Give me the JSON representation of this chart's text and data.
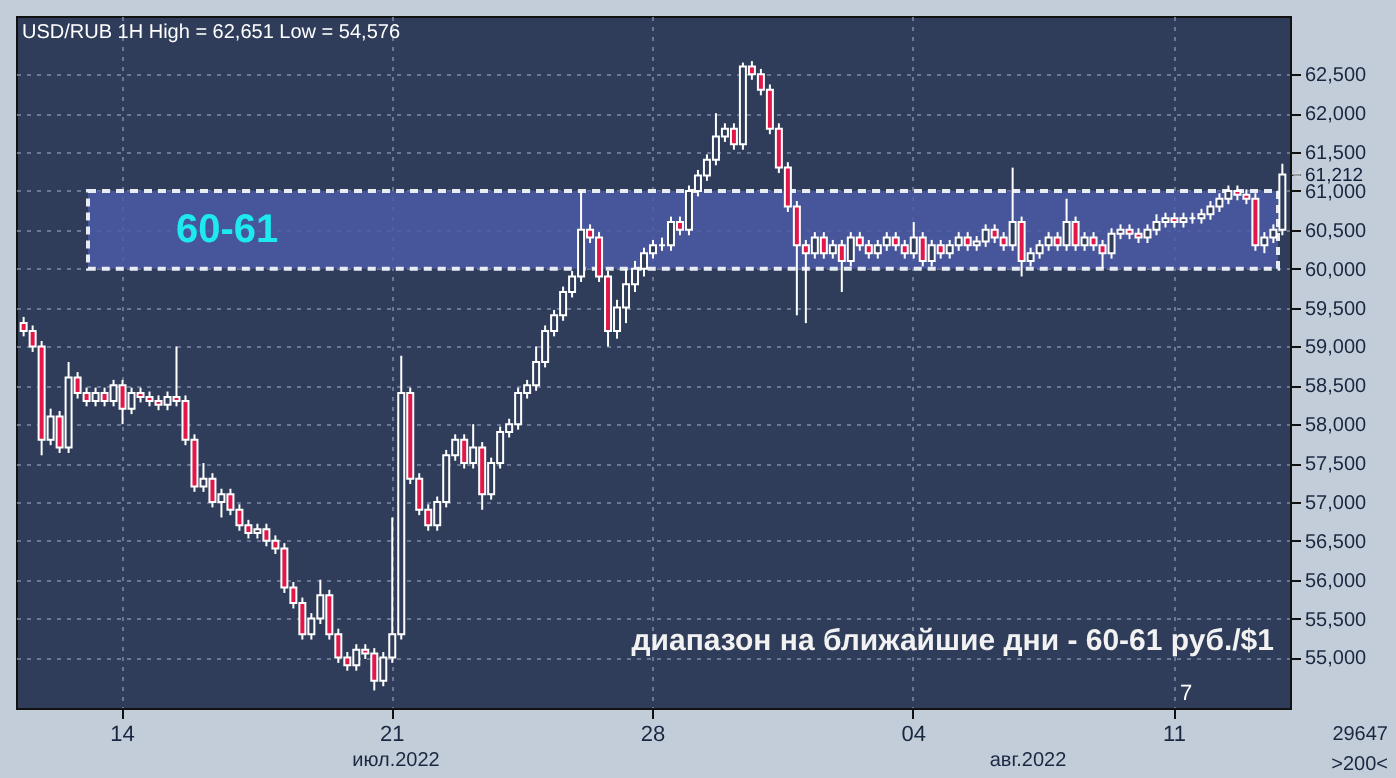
{
  "chart_data": {
    "type": "candlestick",
    "title": "USD/RUB 1H High = 62,651 Low = 54,576",
    "categories": [
      null,
      null,
      null,
      null,
      null,
      null,
      null,
      null,
      null,
      null,
      null,
      "14",
      null,
      null,
      null,
      null,
      null,
      null,
      null,
      null,
      null,
      null,
      null,
      null,
      null,
      null,
      null,
      null,
      null,
      null,
      null,
      null,
      null,
      null,
      null,
      null,
      null,
      null,
      null,
      null,
      null,
      "21",
      null,
      null,
      null,
      null,
      null,
      null,
      null,
      null,
      null,
      null,
      null,
      null,
      null,
      null,
      null,
      null,
      null,
      null,
      null,
      null,
      null,
      null,
      null,
      null,
      null,
      null,
      null,
      null,
      "28",
      null,
      null,
      null,
      null,
      null,
      null,
      null,
      null,
      null,
      null,
      null,
      null,
      null,
      null,
      null,
      null,
      null,
      null,
      null,
      null,
      null,
      null,
      null,
      null,
      null,
      null,
      null,
      null,
      "04",
      null,
      null,
      null,
      null,
      null,
      null,
      null,
      null,
      null,
      null,
      null,
      null,
      null,
      null,
      null,
      null,
      null,
      null,
      null,
      null,
      null,
      null,
      null,
      null,
      null,
      null,
      null,
      null,
      "11",
      null,
      null,
      null,
      null,
      null,
      null,
      null,
      null,
      null,
      null,
      null,
      null
    ],
    "ohlc": [
      [
        59300,
        59380,
        59130,
        59200
      ],
      [
        59200,
        59270,
        58930,
        59000
      ],
      [
        59000,
        59070,
        57600,
        57800
      ],
      [
        57800,
        58200,
        57730,
        58100
      ],
      [
        58100,
        58170,
        57630,
        57700
      ],
      [
        57700,
        58800,
        57630,
        58600
      ],
      [
        58600,
        58670,
        58330,
        58400
      ],
      [
        58400,
        58470,
        58230,
        58300
      ],
      [
        58300,
        58470,
        58230,
        58400
      ],
      [
        58400,
        58470,
        58230,
        58300
      ],
      [
        58300,
        58570,
        58230,
        58500
      ],
      [
        58500,
        58570,
        58000,
        58200
      ],
      [
        58200,
        58470,
        58130,
        58400
      ],
      [
        58400,
        58470,
        58280,
        58350
      ],
      [
        58350,
        58420,
        58230,
        58300
      ],
      [
        58300,
        58370,
        58180,
        58250
      ],
      [
        58250,
        58420,
        58180,
        58350
      ],
      [
        58350,
        59000,
        58230,
        58300
      ],
      [
        58300,
        58370,
        57730,
        57800
      ],
      [
        57800,
        57870,
        57130,
        57200
      ],
      [
        57200,
        57500,
        57130,
        57300
      ],
      [
        57300,
        57370,
        56930,
        57000
      ],
      [
        57000,
        57170,
        56800,
        57100
      ],
      [
        57100,
        57170,
        56830,
        56900
      ],
      [
        56900,
        56970,
        56630,
        56700
      ],
      [
        56700,
        56770,
        56530,
        56600
      ],
      [
        56600,
        56720,
        56530,
        56650
      ],
      [
        56650,
        56720,
        56430,
        56500
      ],
      [
        56500,
        56570,
        56330,
        56400
      ],
      [
        56400,
        56470,
        55830,
        55900
      ],
      [
        55900,
        55970,
        55630,
        55700
      ],
      [
        55700,
        55770,
        55230,
        55300
      ],
      [
        55300,
        55570,
        55230,
        55500
      ],
      [
        55500,
        56000,
        55430,
        55800
      ],
      [
        55800,
        55870,
        55230,
        55300
      ],
      [
        55300,
        55370,
        54930,
        55000
      ],
      [
        55000,
        55070,
        54830,
        54900
      ],
      [
        54900,
        55170,
        54830,
        55100
      ],
      [
        55100,
        55170,
        54980,
        55050
      ],
      [
        55050,
        55120,
        54576,
        54700
      ],
      [
        54700,
        55070,
        54630,
        55000
      ],
      [
        55000,
        56800,
        54930,
        55300
      ],
      [
        55300,
        58880,
        55230,
        58400
      ],
      [
        58400,
        58470,
        57230,
        57300
      ],
      [
        57300,
        57370,
        56830,
        56900
      ],
      [
        56900,
        56970,
        56630,
        56700
      ],
      [
        56700,
        57070,
        56630,
        57000
      ],
      [
        57000,
        57670,
        56930,
        57600
      ],
      [
        57600,
        57870,
        57530,
        57800
      ],
      [
        57800,
        57870,
        57430,
        57500
      ],
      [
        57500,
        58000,
        57430,
        57700
      ],
      [
        57700,
        57770,
        56900,
        57100
      ],
      [
        57100,
        57570,
        57030,
        57500
      ],
      [
        57500,
        57970,
        57430,
        57900
      ],
      [
        57900,
        58070,
        57830,
        58000
      ],
      [
        58000,
        58470,
        57930,
        58400
      ],
      [
        58400,
        58570,
        58330,
        58500
      ],
      [
        58500,
        59000,
        58430,
        58800
      ],
      [
        58800,
        59270,
        58730,
        59200
      ],
      [
        59200,
        59470,
        59130,
        59400
      ],
      [
        59400,
        59770,
        59330,
        59700
      ],
      [
        59700,
        59970,
        59630,
        59900
      ],
      [
        59900,
        61000,
        59830,
        60500
      ],
      [
        60500,
        60570,
        60330,
        60400
      ],
      [
        60400,
        60470,
        59830,
        59900
      ],
      [
        59900,
        59970,
        59000,
        59200
      ],
      [
        59200,
        59600,
        59100,
        59500
      ],
      [
        59500,
        60000,
        59300,
        59800
      ],
      [
        59800,
        60100,
        59700,
        60000
      ],
      [
        60000,
        60270,
        59900,
        60200
      ],
      [
        60200,
        60370,
        60130,
        60300
      ],
      [
        60300,
        60400,
        60230,
        60300
      ],
      [
        60300,
        60670,
        60230,
        60600
      ],
      [
        60600,
        60670,
        60430,
        60500
      ],
      [
        60500,
        61070,
        60430,
        61000
      ],
      [
        61000,
        61270,
        60930,
        61200
      ],
      [
        61200,
        61470,
        61130,
        61400
      ],
      [
        61400,
        62000,
        61330,
        61700
      ],
      [
        61700,
        61870,
        61630,
        61800
      ],
      [
        61800,
        61870,
        61530,
        61600
      ],
      [
        61600,
        62651,
        61530,
        62600
      ],
      [
        62600,
        62670,
        62430,
        62500
      ],
      [
        62500,
        62570,
        62230,
        62300
      ],
      [
        62300,
        62370,
        61730,
        61800
      ],
      [
        61800,
        61870,
        61230,
        61300
      ],
      [
        61300,
        61370,
        60730,
        60800
      ],
      [
        60800,
        60870,
        59400,
        60300
      ],
      [
        60300,
        60370,
        59300,
        60200
      ],
      [
        60200,
        60470,
        60130,
        60400
      ],
      [
        60400,
        60470,
        60130,
        60200
      ],
      [
        60200,
        60370,
        60130,
        60300
      ],
      [
        60300,
        60370,
        59700,
        60100
      ],
      [
        60100,
        60470,
        60030,
        60400
      ],
      [
        60400,
        60470,
        60230,
        60300
      ],
      [
        60300,
        60370,
        60130,
        60200
      ],
      [
        60200,
        60370,
        60130,
        60300
      ],
      [
        60300,
        60470,
        60230,
        60400
      ],
      [
        60400,
        60470,
        60230,
        60300
      ],
      [
        60300,
        60370,
        60130,
        60200
      ],
      [
        60200,
        60600,
        60130,
        60400
      ],
      [
        60400,
        60470,
        60030,
        60100
      ],
      [
        60100,
        60370,
        60030,
        60300
      ],
      [
        60300,
        60370,
        60130,
        60200
      ],
      [
        60200,
        60370,
        60130,
        60300
      ],
      [
        60300,
        60470,
        60230,
        60400
      ],
      [
        60400,
        60470,
        60230,
        60300
      ],
      [
        60300,
        60420,
        60230,
        60350
      ],
      [
        60350,
        60570,
        60280,
        60500
      ],
      [
        60500,
        60570,
        60330,
        60400
      ],
      [
        60400,
        60470,
        60230,
        60300
      ],
      [
        60300,
        61300,
        60230,
        60600
      ],
      [
        60600,
        60670,
        59900,
        60100
      ],
      [
        60100,
        60270,
        60030,
        60200
      ],
      [
        60200,
        60370,
        60130,
        60300
      ],
      [
        60300,
        60470,
        60230,
        60400
      ],
      [
        60400,
        60470,
        60230,
        60300
      ],
      [
        60300,
        60900,
        60230,
        60600
      ],
      [
        60600,
        60670,
        60230,
        60300
      ],
      [
        60300,
        60470,
        60230,
        60400
      ],
      [
        60400,
        60470,
        60230,
        60300
      ],
      [
        60300,
        60370,
        60000,
        60200
      ],
      [
        60200,
        60520,
        60130,
        60450
      ],
      [
        60450,
        60570,
        60380,
        60500
      ],
      [
        60500,
        60570,
        60380,
        60450
      ],
      [
        60450,
        60520,
        60330,
        60400
      ],
      [
        60400,
        60570,
        60330,
        60500
      ],
      [
        60500,
        60700,
        60430,
        60600
      ],
      [
        60600,
        60720,
        60530,
        60650
      ],
      [
        60650,
        60720,
        60530,
        60600
      ],
      [
        60600,
        60720,
        60530,
        60650
      ],
      [
        60650,
        60720,
        60580,
        60650
      ],
      [
        60650,
        60770,
        60580,
        60700
      ],
      [
        60700,
        60870,
        60630,
        60800
      ],
      [
        60800,
        60970,
        60730,
        60900
      ],
      [
        60900,
        61070,
        60830,
        61000
      ],
      [
        61000,
        61070,
        60880,
        60950
      ],
      [
        60950,
        61020,
        60830,
        60900
      ],
      [
        60900,
        60970,
        60230,
        60300
      ],
      [
        60300,
        60470,
        60200,
        60400
      ],
      [
        60400,
        60570,
        60330,
        60500
      ],
      [
        60500,
        61350,
        60430,
        61212
      ]
    ],
    "ylim": [
      54350,
      63250
    ],
    "yticks": [
      {
        "value": 55000,
        "label": "55,000"
      },
      {
        "value": 55500,
        "label": "55,500"
      },
      {
        "value": 56000,
        "label": "56,000"
      },
      {
        "value": 56500,
        "label": "56,500"
      },
      {
        "value": 57000,
        "label": "57,000"
      },
      {
        "value": 57500,
        "label": "57,500"
      },
      {
        "value": 58000,
        "label": "58,000"
      },
      {
        "value": 58500,
        "label": "58,500"
      },
      {
        "value": 59000,
        "label": "59,000"
      },
      {
        "value": 59500,
        "label": "59,500"
      },
      {
        "value": 60000,
        "label": "60,000"
      },
      {
        "value": 60500,
        "label": "60,500"
      },
      {
        "value": 61000,
        "label": "61,000"
      },
      {
        "value": 61212,
        "label": "61,212"
      },
      {
        "value": 61500,
        "label": "61,500"
      },
      {
        "value": 62000,
        "label": "62,000"
      },
      {
        "value": 62500,
        "label": "62,500"
      }
    ],
    "bands": [
      {
        "axis": "y",
        "from": 60000,
        "to": 61000,
        "label": "60-61",
        "color": "#4b5aa6"
      }
    ],
    "annotations": [
      "диапазон на ближайшие дни - 60-61 руб./$1",
      "июл.2022",
      "авг.2022",
      "7",
      "29647",
      ">200<"
    ],
    "grid": true
  }
}
